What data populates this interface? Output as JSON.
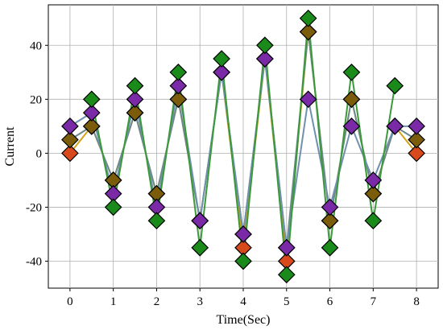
{
  "chart_data": {
    "type": "line",
    "title": "",
    "xlabel": "Time(Sec)",
    "ylabel": "Current",
    "xlim": [
      -0.5,
      8.5
    ],
    "ylim": [
      -50,
      55
    ],
    "xticks": [
      0,
      1,
      2,
      3,
      4,
      5,
      6,
      7,
      8
    ],
    "yticks": [
      -40,
      -20,
      0,
      20,
      40
    ],
    "grid": true,
    "legend": "none",
    "x": [
      0,
      0.5,
      1,
      1.5,
      2,
      2.5,
      3,
      3.5,
      4,
      4.5,
      5,
      5.5,
      6,
      6.5,
      7,
      7.5,
      8
    ],
    "series": [
      {
        "color": "#d84a1b",
        "line_color": "#d4a017",
        "values": [
          0,
          10,
          -10,
          15,
          -15,
          20,
          -25,
          30,
          -35,
          35,
          -40,
          45,
          -25,
          20,
          -15,
          10,
          0
        ]
      },
      {
        "color": "#7a5c0a",
        "line_color": "#6a8a8a",
        "values": [
          5,
          10,
          -10,
          15,
          -15,
          20,
          -25,
          30,
          -30,
          35,
          -35,
          45,
          -25,
          20,
          -15,
          10,
          5
        ]
      },
      {
        "color": "#7b2aa7",
        "line_color": "#7090b0",
        "values": [
          10,
          15,
          -15,
          20,
          -20,
          25,
          -25,
          30,
          -30,
          35,
          -35,
          20,
          -20,
          10,
          -10,
          10,
          10
        ]
      },
      {
        "color": "#1a8a1a",
        "line_color": "#3a9a3a",
        "values": [
          null,
          20,
          -20,
          25,
          -25,
          30,
          -35,
          35,
          -40,
          40,
          -45,
          50,
          -35,
          30,
          -25,
          25,
          null
        ]
      }
    ]
  }
}
